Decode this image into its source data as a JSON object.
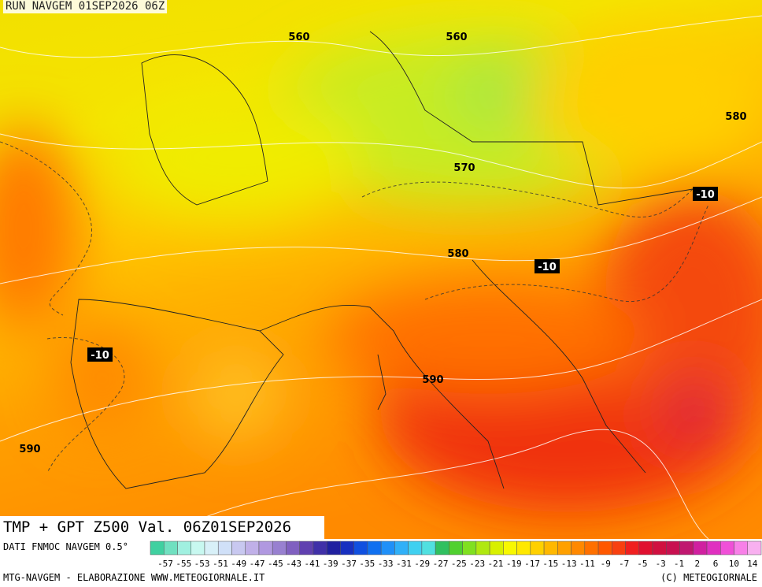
{
  "header": {
    "run": "RUN NAVGEM 01SEP2026 06Z"
  },
  "map": {
    "contour_labels": [
      "560",
      "560",
      "580",
      "570",
      "-10",
      "580",
      "-10",
      "-10",
      "590",
      "590"
    ]
  },
  "footer": {
    "title": "TMP + GPT Z500 Val. 06Z01SEP2026",
    "source": "DATI FNMOC NAVGEM 0.5°",
    "credit": "MTG-NAVGEM - ELABORAZIONE WWW.METEOGIORNALE.IT",
    "copyright": "(C) METEOGIORNALE"
  },
  "scale": {
    "labels": [
      "-57",
      "-55",
      "-53",
      "-51",
      "-49",
      "-47",
      "-45",
      "-43",
      "-41",
      "-39",
      "-37",
      "-35",
      "-33",
      "-31",
      "-29",
      "-27",
      "-25",
      "-23",
      "-21",
      "-19",
      "-17",
      "-15",
      "-13",
      "-11",
      "-9",
      "-7",
      "-5",
      "-3",
      "-1",
      "2",
      "6",
      "10",
      "14"
    ]
  }
}
